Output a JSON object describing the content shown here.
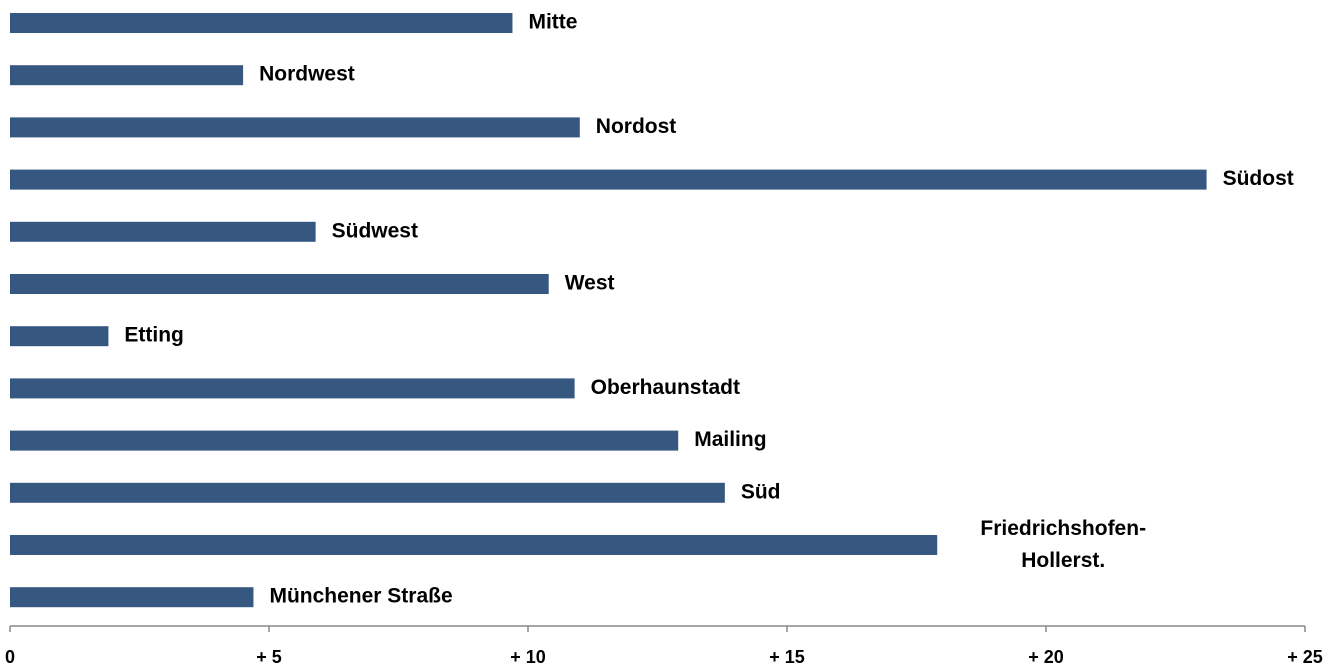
{
  "chart_data": {
    "type": "bar",
    "orientation": "horizontal",
    "categories": [
      "Mitte",
      "Nordwest",
      "Nordost",
      "Südost",
      "Südwest",
      "West",
      "Etting",
      "Oberhaunstadt",
      "Mailing",
      "Süd",
      "Friedrichshofen-\nHollerst.",
      "Münchener Straße"
    ],
    "values": [
      9.7,
      4.5,
      11.0,
      23.1,
      5.9,
      10.4,
      1.9,
      10.9,
      12.9,
      13.8,
      17.9,
      4.7
    ],
    "color": "#365880",
    "xlim": [
      0,
      25
    ],
    "xticks": [
      0,
      {
        "value": 5,
        "label": "+ 5"
      },
      {
        "value": 10,
        "label": "+ 10"
      },
      {
        "value": 15,
        "label": "+ 15"
      },
      {
        "value": 20,
        "label": "+ 20"
      },
      {
        "value": 25,
        "label": "+ 25"
      }
    ],
    "grid": false
  }
}
